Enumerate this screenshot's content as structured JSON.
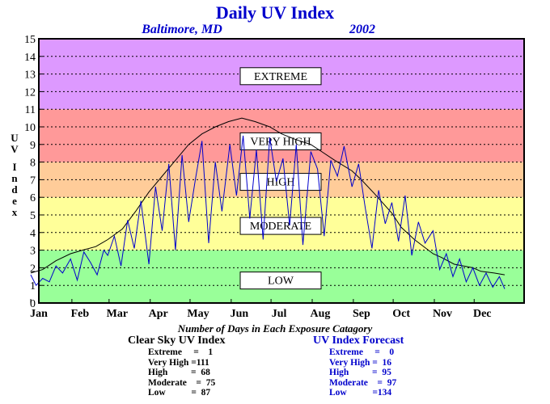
{
  "chart_data": {
    "type": "line",
    "title": "Daily UV Index",
    "subtitle_location": "Baltimore, MD",
    "subtitle_year": "2002",
    "ylabel": "UV Index",
    "ylim": [
      0,
      15
    ],
    "yticks": [
      "0",
      "1",
      "2",
      "3",
      "4",
      "5",
      "6",
      "7",
      "8",
      "9",
      "10",
      "11",
      "12",
      "13",
      "14",
      "15"
    ],
    "xtick_labels": [
      "Jan",
      "Feb",
      "Mar",
      "Apr",
      "May",
      "Jun",
      "Jul",
      "Aug",
      "Sep",
      "Oct",
      "Nov",
      "Dec"
    ],
    "xlim_days": [
      1,
      365
    ],
    "grid": true,
    "bands": [
      {
        "label": "LOW",
        "from": 0,
        "to": 3,
        "color": "#99ff99",
        "label_value": 1.3
      },
      {
        "label": "MODERATE",
        "from": 3,
        "to": 6,
        "color": "#ffff99",
        "label_value": 4.4
      },
      {
        "label": "HIGH",
        "from": 6,
        "to": 8,
        "color": "#ffcc99",
        "label_value": 6.9
      },
      {
        "label": "VERY HIGH",
        "from": 8,
        "to": 11,
        "color": "#ff9999",
        "label_value": 9.2
      },
      {
        "label": "EXTREME",
        "from": 11,
        "to": 15,
        "color": "#dd99ff",
        "label_value": 12.9
      }
    ],
    "series": [
      {
        "color": "#000000",
        "x": [
          1,
          10,
          20,
          31,
          40,
          50,
          59,
          70,
          80,
          90,
          100,
          110,
          120,
          130,
          140,
          150,
          160,
          170,
          181,
          190,
          200,
          212,
          220,
          230,
          243,
          250,
          260,
          273,
          280,
          290,
          304,
          310,
          320,
          334,
          340,
          350,
          358
        ],
        "y": [
          1.7,
          1.9,
          2.4,
          2.8,
          3.0,
          3.2,
          3.6,
          4.2,
          5.2,
          6.3,
          7.2,
          8.1,
          9.0,
          9.6,
          10.0,
          10.3,
          10.5,
          10.3,
          10.0,
          9.6,
          9.3,
          9.0,
          8.6,
          8.1,
          7.5,
          7.0,
          6.2,
          5.1,
          4.3,
          3.6,
          2.8,
          2.6,
          2.2,
          2.0,
          1.8,
          1.7,
          1.6
        ]
      },
      {
        "color": "#0000cc",
        "x": [
          1,
          5,
          10,
          15,
          20,
          25,
          31,
          36,
          41,
          46,
          51,
          56,
          59,
          64,
          69,
          74,
          79,
          84,
          90,
          95,
          100,
          105,
          110,
          115,
          120,
          125,
          130,
          135,
          140,
          145,
          151,
          156,
          161,
          166,
          171,
          176,
          181,
          186,
          191,
          196,
          201,
          206,
          212,
          217,
          222,
          227,
          232,
          237,
          243,
          248,
          253,
          258,
          263,
          268,
          273,
          278,
          283,
          288,
          293,
          298,
          304,
          309,
          314,
          319,
          324,
          329,
          334,
          339,
          344,
          349,
          354,
          358
        ],
        "y": [
          1.6,
          1.0,
          1.4,
          1.2,
          2.1,
          1.7,
          2.5,
          1.3,
          2.9,
          2.3,
          1.6,
          3.0,
          2.7,
          3.8,
          2.1,
          4.7,
          3.1,
          5.8,
          2.2,
          6.6,
          4.1,
          7.9,
          3.0,
          8.4,
          4.6,
          7.0,
          9.2,
          3.4,
          8.0,
          5.2,
          9.0,
          6.1,
          9.5,
          4.8,
          8.7,
          3.6,
          9.4,
          6.9,
          8.2,
          4.4,
          9.0,
          3.3,
          8.6,
          7.6,
          3.8,
          8.1,
          7.2,
          8.9,
          6.6,
          7.9,
          5.4,
          3.1,
          6.4,
          4.5,
          5.7,
          3.5,
          6.1,
          2.7,
          4.6,
          3.4,
          4.1,
          1.9,
          2.8,
          1.5,
          2.5,
          1.2,
          2.0,
          1.0,
          1.7,
          0.9,
          1.5,
          0.8
        ]
      }
    ]
  },
  "caption": "Number of Days in Each Exposure Catagory",
  "clear_sky": {
    "header": "Clear Sky UV Index",
    "rows": [
      "Extreme     =    1",
      "Very High =111",
      "High          =  68",
      "Moderate    =  75",
      "Low           =  87"
    ]
  },
  "forecast": {
    "header": "UV Index Forecast",
    "rows": [
      "Extreme     =    0",
      "Very High =  16",
      "High          =  95",
      "Moderate    =  97",
      "Low           =134"
    ]
  },
  "colors": {
    "title": "#0000cc",
    "forecast": "#0000cc",
    "clear_sky_line": "#000000",
    "forecast_line": "#0000cc"
  }
}
